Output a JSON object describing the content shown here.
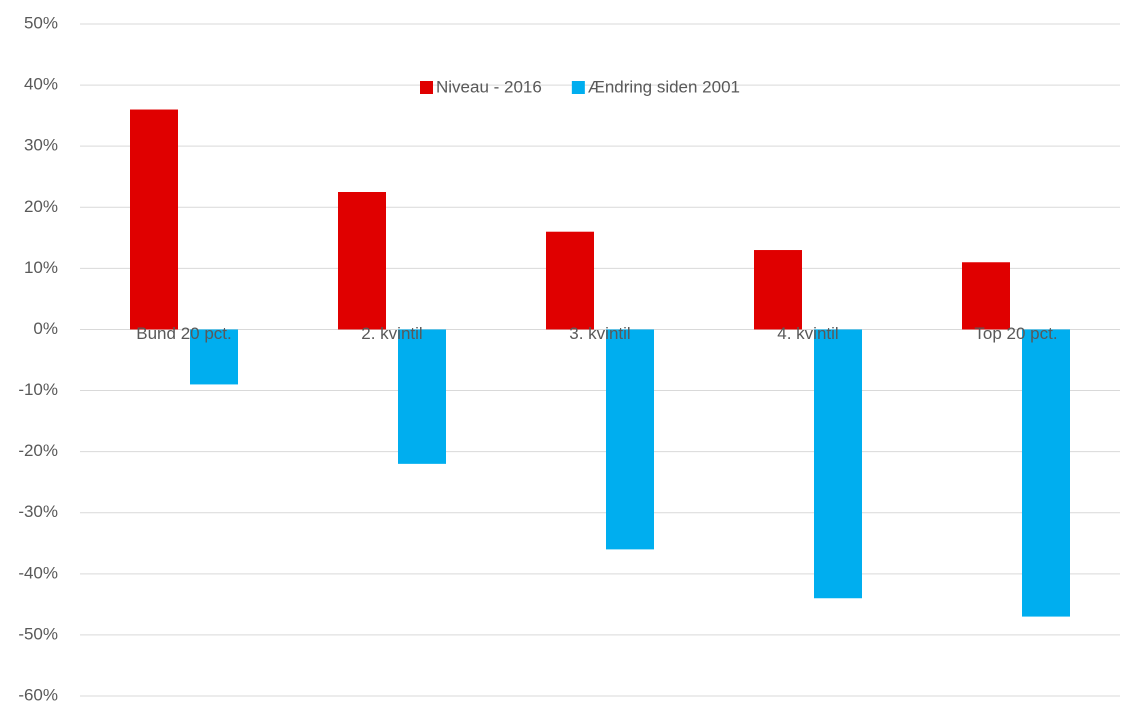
{
  "chart_data": {
    "type": "bar",
    "categories": [
      "Bund 20 pct.",
      "2. kvintil",
      "3. kvintil",
      "4. kvintil",
      "Top 20 pct."
    ],
    "series": [
      {
        "name": "Niveau - 2016",
        "color": "#e00000",
        "values": [
          36,
          22.5,
          16,
          13,
          11
        ]
      },
      {
        "name": "Ændring siden 2001",
        "color": "#00aeef",
        "values": [
          -9,
          -22,
          -36,
          -44,
          -47
        ]
      }
    ],
    "ylim": [
      -60,
      50
    ],
    "yticks": [
      {
        "value": -60,
        "label": "-60%"
      },
      {
        "value": -50,
        "label": "-50%"
      },
      {
        "value": -40,
        "label": "-40%"
      },
      {
        "value": -30,
        "label": "-30%"
      },
      {
        "value": -20,
        "label": "-20%"
      },
      {
        "value": -10,
        "label": "-10%"
      },
      {
        "value": 0,
        "label": "0%"
      },
      {
        "value": 10,
        "label": "10%"
      },
      {
        "value": 20,
        "label": "20%"
      },
      {
        "value": 30,
        "label": "30%"
      },
      {
        "value": 40,
        "label": "40%"
      },
      {
        "value": 50,
        "label": "50%"
      }
    ],
    "grid": true,
    "legend": "top"
  }
}
